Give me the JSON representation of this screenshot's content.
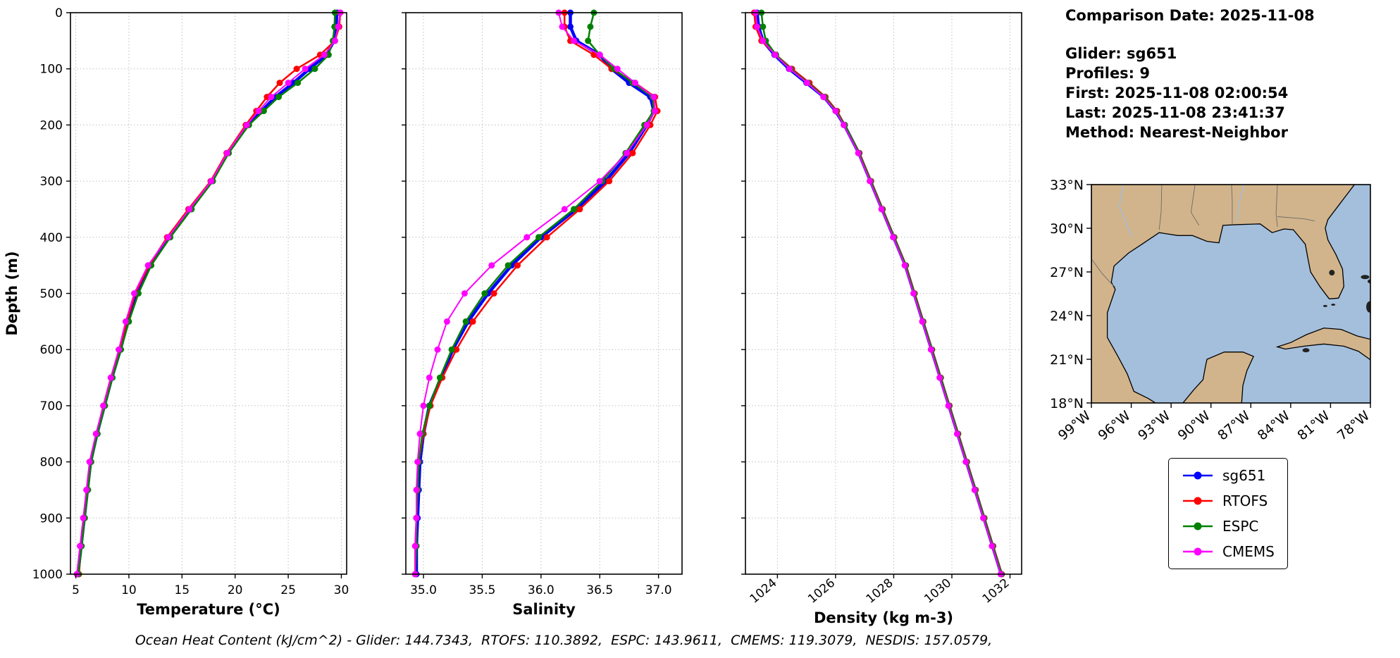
{
  "info": {
    "comparison_date": "Comparison Date: 2025-11-08",
    "glider": "Glider: sg651",
    "profiles": "Profiles: 9",
    "first": "First: 2025-11-08 02:00:54",
    "last": "Last: 2025-11-08 23:41:37",
    "method": "Method: Nearest-Neighbor"
  },
  "caption": {
    "text": "Ocean Heat Content (kJ/cm^2) - Glider: 144.7343,  RTOFS: 110.3892,  ESPC: 143.9611,  CMEMS: 119.3079,  NESDIS: 157.0579,"
  },
  "legend": {
    "entries": [
      {
        "label": "sg651",
        "color": "#0000ff"
      },
      {
        "label": "RTOFS",
        "color": "#ff0000"
      },
      {
        "label": "ESPC",
        "color": "#008000"
      },
      {
        "label": "CMEMS",
        "color": "#ff00ff"
      }
    ]
  },
  "map": {
    "land_color": "#d2b48c",
    "water_color": "#a3bfdc",
    "lat_ticks": [
      {
        "value": 33,
        "label": "33°N"
      },
      {
        "value": 30,
        "label": "30°N"
      },
      {
        "value": 27,
        "label": "27°N"
      },
      {
        "value": 24,
        "label": "24°N"
      },
      {
        "value": 21,
        "label": "21°N"
      },
      {
        "value": 18,
        "label": "18°N"
      }
    ],
    "lon_ticks": [
      {
        "value": -99,
        "label": "99°W"
      },
      {
        "value": -96,
        "label": "96°W"
      },
      {
        "value": -93,
        "label": "93°W"
      },
      {
        "value": -90,
        "label": "90°W"
      },
      {
        "value": -87,
        "label": "87°W"
      },
      {
        "value": -84,
        "label": "84°W"
      },
      {
        "value": -81,
        "label": "81°W"
      },
      {
        "value": -78,
        "label": "78°W"
      }
    ]
  },
  "chart_data": [
    {
      "type": "line",
      "xlabel": "Temperature (°C)",
      "ylabel": "Depth (m)",
      "xlim": [
        4.5,
        30.5
      ],
      "xticks": [
        5,
        10,
        15,
        20,
        25,
        30
      ],
      "xtick_labels": [
        "5",
        "10",
        "15",
        "20",
        "25",
        "30"
      ],
      "ylim": [
        0,
        1000
      ],
      "yticks": [
        0,
        100,
        200,
        300,
        400,
        500,
        600,
        700,
        800,
        900,
        1000
      ],
      "grid": true,
      "depths": [
        0,
        25,
        50,
        75,
        100,
        125,
        150,
        175,
        200,
        250,
        300,
        350,
        400,
        450,
        500,
        550,
        600,
        650,
        700,
        750,
        800,
        850,
        900,
        950,
        1000
      ],
      "series": [
        {
          "name": "sg651",
          "color": "#0000ff",
          "line_width": 4.5,
          "marker_size": 4.5,
          "values": [
            29.6,
            29.5,
            29.3,
            28.6,
            27.0,
            25.5,
            23.8,
            22.5,
            21.2,
            19.3,
            17.8,
            15.8,
            13.8,
            12.0,
            10.8,
            9.9,
            9.2,
            8.4,
            7.7,
            7.0,
            6.4,
            6.1,
            5.8,
            5.5,
            5.2
          ]
        },
        {
          "name": "RTOFS",
          "color": "#ff0000",
          "line_width": 2.5,
          "marker_size": 4.5,
          "values": [
            29.9,
            29.8,
            29.4,
            28.0,
            25.8,
            24.2,
            23.0,
            22.0,
            21.0,
            19.2,
            17.7,
            15.6,
            13.6,
            11.9,
            10.6,
            9.8,
            9.1,
            8.3,
            7.6,
            6.95,
            6.35,
            6.05,
            5.75,
            5.5,
            5.3
          ]
        },
        {
          "name": "ESPC",
          "color": "#008000",
          "line_width": 2.5,
          "marker_size": 4.5,
          "values": [
            29.4,
            29.35,
            29.2,
            28.8,
            27.5,
            25.9,
            24.1,
            22.7,
            21.3,
            19.4,
            17.9,
            15.9,
            13.9,
            12.1,
            10.9,
            10.0,
            9.25,
            8.45,
            7.75,
            7.05,
            6.45,
            6.15,
            5.85,
            5.55,
            5.25
          ]
        },
        {
          "name": "CMEMS",
          "color": "#ff00ff",
          "line_width": 2.0,
          "marker_size": 4.5,
          "values": [
            29.9,
            29.7,
            29.4,
            28.4,
            26.6,
            25.0,
            23.4,
            22.2,
            21.1,
            19.25,
            17.75,
            15.7,
            13.7,
            11.8,
            10.5,
            9.7,
            9.05,
            8.3,
            7.6,
            6.9,
            6.3,
            6.0,
            5.7,
            5.4,
            5.1
          ]
        }
      ]
    },
    {
      "type": "line",
      "xlabel": "Salinity",
      "ylabel": "",
      "xlim": [
        34.85,
        37.2
      ],
      "xticks": [
        35.0,
        35.5,
        36.0,
        36.5,
        37.0
      ],
      "xtick_labels": [
        "35.0",
        "35.5",
        "36.0",
        "36.5",
        "37.0"
      ],
      "ylim": [
        0,
        1000
      ],
      "yticks": [
        0,
        100,
        200,
        300,
        400,
        500,
        600,
        700,
        800,
        900,
        1000
      ],
      "grid": true,
      "depths": [
        0,
        25,
        50,
        75,
        100,
        125,
        150,
        175,
        200,
        250,
        300,
        350,
        400,
        450,
        500,
        550,
        600,
        650,
        700,
        750,
        800,
        850,
        900,
        950,
        1000
      ],
      "series": [
        {
          "name": "sg651",
          "color": "#0000ff",
          "line_width": 4.5,
          "marker_size": 4.5,
          "values": [
            36.25,
            36.25,
            36.3,
            36.5,
            36.6,
            36.75,
            36.93,
            36.96,
            36.9,
            36.75,
            36.55,
            36.3,
            36.0,
            35.75,
            35.55,
            35.38,
            35.25,
            35.15,
            35.05,
            35.0,
            34.97,
            34.96,
            34.95,
            34.94,
            34.94
          ]
        },
        {
          "name": "RTOFS",
          "color": "#ff0000",
          "line_width": 2.5,
          "marker_size": 4.5,
          "values": [
            36.2,
            36.2,
            36.25,
            36.45,
            36.6,
            36.8,
            36.97,
            36.99,
            36.93,
            36.78,
            36.58,
            36.33,
            36.05,
            35.8,
            35.6,
            35.42,
            35.28,
            35.16,
            35.06,
            35.0,
            34.96,
            34.95,
            34.94,
            34.93,
            34.93
          ]
        },
        {
          "name": "ESPC",
          "color": "#008000",
          "line_width": 2.5,
          "marker_size": 4.5,
          "values": [
            36.45,
            36.42,
            36.4,
            36.5,
            36.62,
            36.78,
            36.95,
            36.96,
            36.88,
            36.72,
            36.52,
            36.28,
            35.98,
            35.72,
            35.52,
            35.36,
            35.24,
            35.14,
            35.05,
            34.99,
            34.96,
            34.95,
            34.94,
            34.94,
            34.93
          ]
        },
        {
          "name": "CMEMS",
          "color": "#ff00ff",
          "line_width": 2.0,
          "marker_size": 4.5,
          "values": [
            36.15,
            36.18,
            36.28,
            36.5,
            36.65,
            36.8,
            36.96,
            36.97,
            36.9,
            36.73,
            36.5,
            36.2,
            35.88,
            35.58,
            35.35,
            35.2,
            35.12,
            35.05,
            35.0,
            34.97,
            34.95,
            34.94,
            34.94,
            34.93,
            34.93
          ]
        }
      ]
    },
    {
      "type": "line",
      "xlabel": "Density (kg m-3)",
      "ylabel": "",
      "xlim": [
        1022.9,
        1032.4
      ],
      "xticks": [
        1024,
        1026,
        1028,
        1030,
        1032
      ],
      "xtick_labels": [
        "1024",
        "1026",
        "1028",
        "1030",
        "1032"
      ],
      "ylim": [
        0,
        1000
      ],
      "yticks": [
        0,
        100,
        200,
        300,
        400,
        500,
        600,
        700,
        800,
        900,
        1000
      ],
      "grid": true,
      "depths": [
        0,
        25,
        50,
        75,
        100,
        125,
        150,
        175,
        200,
        250,
        300,
        350,
        400,
        450,
        500,
        550,
        600,
        650,
        700,
        750,
        800,
        850,
        900,
        950,
        1000
      ],
      "series": [
        {
          "name": "sg651",
          "color": "#0000ff",
          "line_width": 4.5,
          "marker_size": 4.5,
          "values": [
            1023.3,
            1023.35,
            1023.5,
            1023.9,
            1024.4,
            1025.0,
            1025.6,
            1026.0,
            1026.3,
            1026.8,
            1027.2,
            1027.6,
            1028.0,
            1028.4,
            1028.7,
            1029.0,
            1029.3,
            1029.6,
            1029.9,
            1030.2,
            1030.5,
            1030.8,
            1031.1,
            1031.4,
            1031.7
          ]
        },
        {
          "name": "RTOFS",
          "color": "#ff0000",
          "line_width": 2.5,
          "marker_size": 4.5,
          "values": [
            1023.2,
            1023.25,
            1023.45,
            1023.95,
            1024.5,
            1025.1,
            1025.65,
            1026.05,
            1026.32,
            1026.82,
            1027.22,
            1027.62,
            1028.02,
            1028.42,
            1028.72,
            1029.02,
            1029.32,
            1029.62,
            1029.92,
            1030.22,
            1030.52,
            1030.82,
            1031.12,
            1031.42,
            1031.72
          ]
        },
        {
          "name": "ESPC",
          "color": "#008000",
          "line_width": 2.5,
          "marker_size": 4.5,
          "values": [
            1023.45,
            1023.5,
            1023.6,
            1023.95,
            1024.45,
            1025.05,
            1025.62,
            1026.02,
            1026.32,
            1026.81,
            1027.21,
            1027.61,
            1028.01,
            1028.41,
            1028.71,
            1029.01,
            1029.31,
            1029.61,
            1029.91,
            1030.21,
            1030.51,
            1030.81,
            1031.11,
            1031.41,
            1031.71
          ]
        },
        {
          "name": "CMEMS",
          "color": "#ff00ff",
          "line_width": 2.0,
          "marker_size": 4.5,
          "values": [
            1023.25,
            1023.3,
            1023.5,
            1023.92,
            1024.42,
            1025.02,
            1025.58,
            1026.0,
            1026.28,
            1026.78,
            1027.18,
            1027.58,
            1027.98,
            1028.38,
            1028.68,
            1028.98,
            1029.28,
            1029.58,
            1029.88,
            1030.18,
            1030.48,
            1030.78,
            1031.08,
            1031.38,
            1031.68
          ]
        }
      ]
    }
  ]
}
